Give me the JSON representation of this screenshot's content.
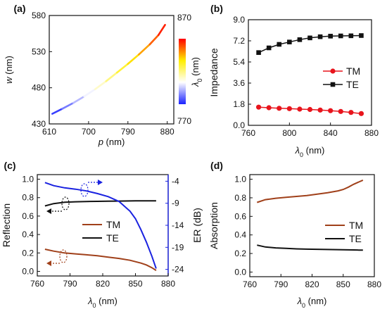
{
  "chart_data": [
    {
      "panel": "(a)",
      "type": "line",
      "xlabel_main": "p",
      "xlabel_unit": "(nm)",
      "ylabel_main": "w",
      "ylabel_unit": "(nm)",
      "colorbar_label_main": "λ",
      "colorbar_label_sub": "0",
      "colorbar_label_unit": "(nm)",
      "xlim": [
        610,
        895
      ],
      "ylim": [
        430,
        580
      ],
      "xticks": [
        610,
        700,
        790,
        880
      ],
      "yticks": [
        430,
        480,
        530,
        580
      ],
      "colorbar_ticks": [
        770,
        870
      ],
      "colorbar_range": [
        770,
        870
      ],
      "colorscale": [
        "#1a22ff",
        "#ffffff",
        "#ffee00",
        "#ff0000"
      ],
      "x": [
        617,
        640,
        665,
        690,
        715,
        740,
        765,
        790,
        815,
        840,
        860,
        875
      ],
      "y": [
        444,
        451,
        459,
        468,
        478,
        489,
        501,
        513,
        526,
        540,
        553,
        567
      ],
      "lambda": [
        770,
        779,
        788,
        797,
        806,
        815,
        825,
        834,
        843,
        852,
        861,
        870
      ]
    },
    {
      "panel": "(b)",
      "type": "line",
      "xlabel_main": "λ",
      "xlabel_sub": "0",
      "xlabel_unit": "(nm)",
      "ylabel": "Impedance",
      "xlim": [
        760,
        880
      ],
      "ylim": [
        0.0,
        9.0
      ],
      "xticks": [
        760,
        800,
        840,
        880
      ],
      "yticks": [
        "0.0",
        "1.8",
        "3.6",
        "5.4",
        "7.2",
        "9.0"
      ],
      "legend_position": "center-right",
      "x": [
        770,
        780,
        790,
        800,
        810,
        820,
        830,
        840,
        850,
        860,
        870
      ],
      "series": [
        {
          "name": "TM",
          "color": "#e8141c",
          "marker": "circle",
          "values": [
            1.55,
            1.5,
            1.45,
            1.42,
            1.38,
            1.35,
            1.3,
            1.25,
            1.18,
            1.1,
            1.0
          ]
        },
        {
          "name": "TE",
          "color": "#111111",
          "marker": "square",
          "values": [
            6.2,
            6.6,
            6.9,
            7.1,
            7.3,
            7.45,
            7.55,
            7.6,
            7.62,
            7.63,
            7.65
          ]
        }
      ]
    },
    {
      "panel": "(c)",
      "type": "line",
      "xlabel_main": "λ",
      "xlabel_sub": "0",
      "xlabel_unit": "(nm)",
      "ylabel": "Reflection",
      "y2label": "ER (dB)",
      "xlim": [
        760,
        880
      ],
      "ylim": [
        -0.05,
        1.05
      ],
      "y2lim": [
        -25.5,
        -2.5
      ],
      "xticks": [
        760,
        790,
        820,
        850,
        880
      ],
      "yticks": [
        "0.0",
        "0.2",
        "0.4",
        "0.6",
        "0.8",
        "1.0"
      ],
      "y2ticks": [
        -4,
        -9,
        -14,
        -19,
        -24
      ],
      "legend_position": "center-right",
      "x": [
        767,
        775,
        785,
        795,
        805,
        815,
        825,
        835,
        845,
        850,
        855,
        860,
        865,
        869
      ],
      "series": [
        {
          "name": "TM",
          "color": "#a0401a",
          "axis": "left",
          "values": [
            0.24,
            0.22,
            0.2,
            0.19,
            0.18,
            0.17,
            0.155,
            0.14,
            0.12,
            0.105,
            0.09,
            0.07,
            0.04,
            0.01
          ]
        },
        {
          "name": "TE",
          "color": "#111111",
          "axis": "left",
          "values": [
            0.71,
            0.735,
            0.75,
            0.755,
            0.758,
            0.76,
            0.762,
            0.763,
            0.764,
            0.765,
            0.765,
            0.765,
            0.765,
            0.765
          ]
        },
        {
          "color": "#1a22e0",
          "axis": "right",
          "values": [
            -4.3,
            -5.0,
            -5.5,
            -5.8,
            -6.2,
            -6.8,
            -7.5,
            -8.6,
            -10.8,
            -12.5,
            -15.0,
            -17.8,
            -21.0,
            -23.8
          ]
        }
      ]
    },
    {
      "panel": "(d)",
      "type": "line",
      "xlabel_main": "λ",
      "xlabel_sub": "0",
      "xlabel_unit": "(nm)",
      "ylabel": "Absorption",
      "xlim": [
        760,
        880
      ],
      "ylim": [
        -0.05,
        1.05
      ],
      "xticks": [
        760,
        790,
        820,
        850,
        880
      ],
      "yticks": [
        "0.0",
        "0.2",
        "0.4",
        "0.6",
        "0.8",
        "1.0"
      ],
      "legend_position": "center-right",
      "x": [
        767,
        775,
        785,
        795,
        805,
        815,
        825,
        835,
        845,
        850,
        855,
        860,
        865,
        869
      ],
      "series": [
        {
          "name": "TM",
          "color": "#a0401a",
          "values": [
            0.75,
            0.78,
            0.795,
            0.805,
            0.815,
            0.825,
            0.84,
            0.855,
            0.875,
            0.89,
            0.915,
            0.945,
            0.97,
            0.99
          ]
        },
        {
          "name": "TE",
          "color": "#111111",
          "values": [
            0.29,
            0.27,
            0.26,
            0.255,
            0.25,
            0.247,
            0.245,
            0.243,
            0.241,
            0.24,
            0.239,
            0.238,
            0.237,
            0.237
          ]
        }
      ]
    }
  ]
}
